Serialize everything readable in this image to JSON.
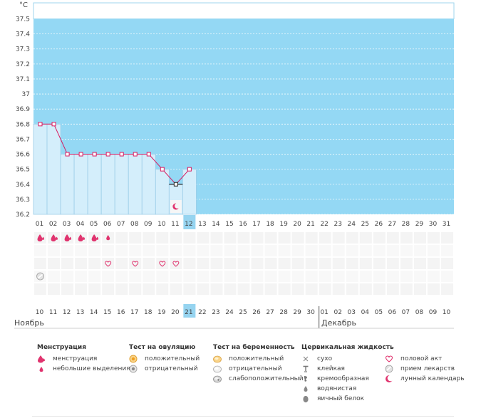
{
  "chart_data": {
    "type": "line",
    "title": "",
    "ylabel": "°C",
    "ylim": [
      36.2,
      37.6
    ],
    "yticks": [
      "37.5",
      "37.4",
      "37.3",
      "37.2",
      "37.1",
      "37",
      "36.9",
      "36.8",
      "36.7",
      "36.6",
      "36.5",
      "36.4",
      "36.3",
      "36.2"
    ],
    "days": [
      "01",
      "02",
      "03",
      "04",
      "05",
      "06",
      "07",
      "08",
      "09",
      "10",
      "11",
      "12",
      "13",
      "14",
      "15",
      "16",
      "17",
      "18",
      "19",
      "20",
      "21",
      "22",
      "23",
      "24",
      "25",
      "26",
      "27",
      "28",
      "29",
      "30",
      "31"
    ],
    "highlight_day": "12",
    "series": [
      {
        "values": [
          36.8,
          36.8,
          36.6,
          36.6,
          36.6,
          36.6,
          36.6,
          36.6,
          36.6,
          36.5,
          36.4,
          36.5
        ]
      }
    ],
    "moon_day": "11",
    "symbol_rows": {
      "menstruation": [
        "01",
        "02",
        "03",
        "04",
        "05"
      ],
      "light_spotting": [
        "06"
      ],
      "intercourse": [
        "06",
        "08",
        "10",
        "11"
      ],
      "medication": [
        "01"
      ]
    },
    "cycle_days": [
      "10",
      "11",
      "12",
      "13",
      "14",
      "15",
      "16",
      "17",
      "18",
      "19",
      "20",
      "21",
      "22",
      "23",
      "24",
      "25",
      "26",
      "27",
      "28",
      "29",
      "30",
      "01",
      "02",
      "03",
      "04",
      "05",
      "06",
      "07",
      "08",
      "09",
      "10"
    ],
    "cycle_red_days": [
      "13",
      "14",
      "20",
      "27",
      "28",
      "04",
      "05"
    ],
    "cycle_highlight": "21",
    "month_start": "Ноябрь",
    "month_end": "Декабрь",
    "colors": {
      "chart_bg": "#94d8f4",
      "bar_fill": "#d4eefb",
      "bar_stroke": "#9ccde8",
      "line": "#d81b60",
      "marker_today": "#222222",
      "highlight_cell": "#96d4f0",
      "red_text": "#d81b60"
    }
  },
  "legend": {
    "menstruation": {
      "title": "Менструация",
      "items": [
        {
          "icon": "menstruation-drop-icon",
          "label": "менструация"
        },
        {
          "icon": "small-drop-icon",
          "label": "небольшие выделения"
        }
      ]
    },
    "ovulation_test": {
      "title": "Тест на овуляцию",
      "items": [
        {
          "icon": "positive-test-icon",
          "label": "положительный"
        },
        {
          "icon": "negative-test-icon",
          "label": "отрицательный"
        }
      ]
    },
    "pregnancy_test": {
      "title": "Тест на беременность",
      "items": [
        {
          "icon": "positive-pregnancy-icon",
          "label": "положительный"
        },
        {
          "icon": "negative-pregnancy-icon",
          "label": "отрицательный"
        },
        {
          "icon": "weak-positive-icon",
          "label": "слабоположительный"
        }
      ]
    },
    "cervical_fluid": {
      "title": "Цервикальная жидкость",
      "items": [
        {
          "icon": "dry-icon",
          "label": "сухо"
        },
        {
          "icon": "sticky-icon",
          "label": "клейкая"
        },
        {
          "icon": "creamy-icon",
          "label": "кремообразная"
        },
        {
          "icon": "watery-icon",
          "label": "водянистая"
        },
        {
          "icon": "egg-white-icon",
          "label": "яичный белок"
        }
      ]
    },
    "other": {
      "items": [
        {
          "icon": "heart-icon",
          "label": "половой акт"
        },
        {
          "icon": "pill-icon",
          "label": "прием лекарств"
        },
        {
          "icon": "moon-icon",
          "label": "лунный календарь"
        }
      ]
    }
  }
}
